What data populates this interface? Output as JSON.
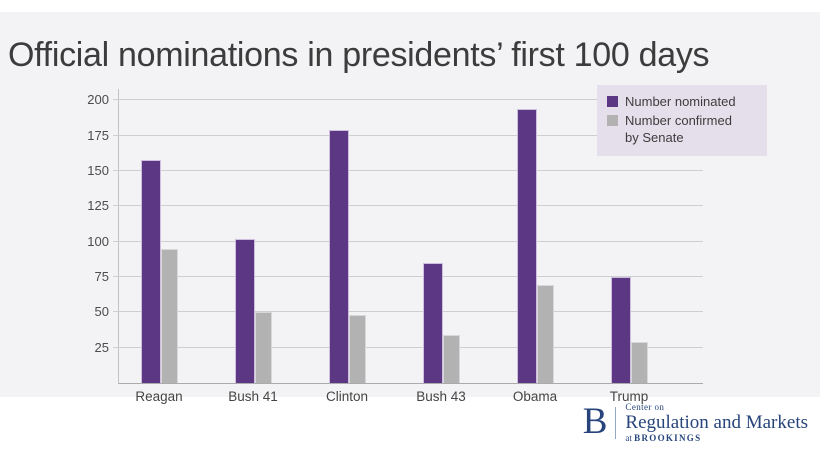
{
  "title": "Official nominations in presidents’ first 100 days",
  "colors": {
    "background_band": "#f3f2f4",
    "nominated_bar": "#5c3784",
    "confirmed_bar": "#b3b2b3",
    "legend_background": "#e5dfec",
    "gridline": "#cecdd0",
    "title_text": "#3c3c3c",
    "logo_navy": "#27457b"
  },
  "chart_data": {
    "type": "bar",
    "categories": [
      "Reagan",
      "Bush 41",
      "Clinton",
      "Bush 43",
      "Obama",
      "Trump"
    ],
    "series": [
      {
        "name": "Number nominated",
        "color": "#5c3784",
        "values": [
          158,
          102,
          179,
          85,
          194,
          75
        ]
      },
      {
        "name": "Number confirmed by Senate",
        "color": "#b3b2b3",
        "values": [
          95,
          50,
          48,
          34,
          69,
          29
        ]
      }
    ],
    "title": "Official nominations in presidents’ first 100 days",
    "xlabel": "",
    "ylabel": "",
    "ylim": [
      0,
      208
    ],
    "yticks": [
      25,
      50,
      75,
      100,
      125,
      150,
      175,
      200
    ],
    "grid": true,
    "legend_position": "top-right"
  },
  "legend": {
    "items": [
      {
        "label": "Number nominated",
        "color": "#5c3784"
      },
      {
        "label": "Number confirmed\nby Senate",
        "color": "#b3b2b3"
      }
    ]
  },
  "logo": {
    "letter": "B",
    "center_on": "Center on",
    "name": "Regulation and Markets",
    "at_prefix": "at",
    "brookings": "BROOKINGS"
  }
}
